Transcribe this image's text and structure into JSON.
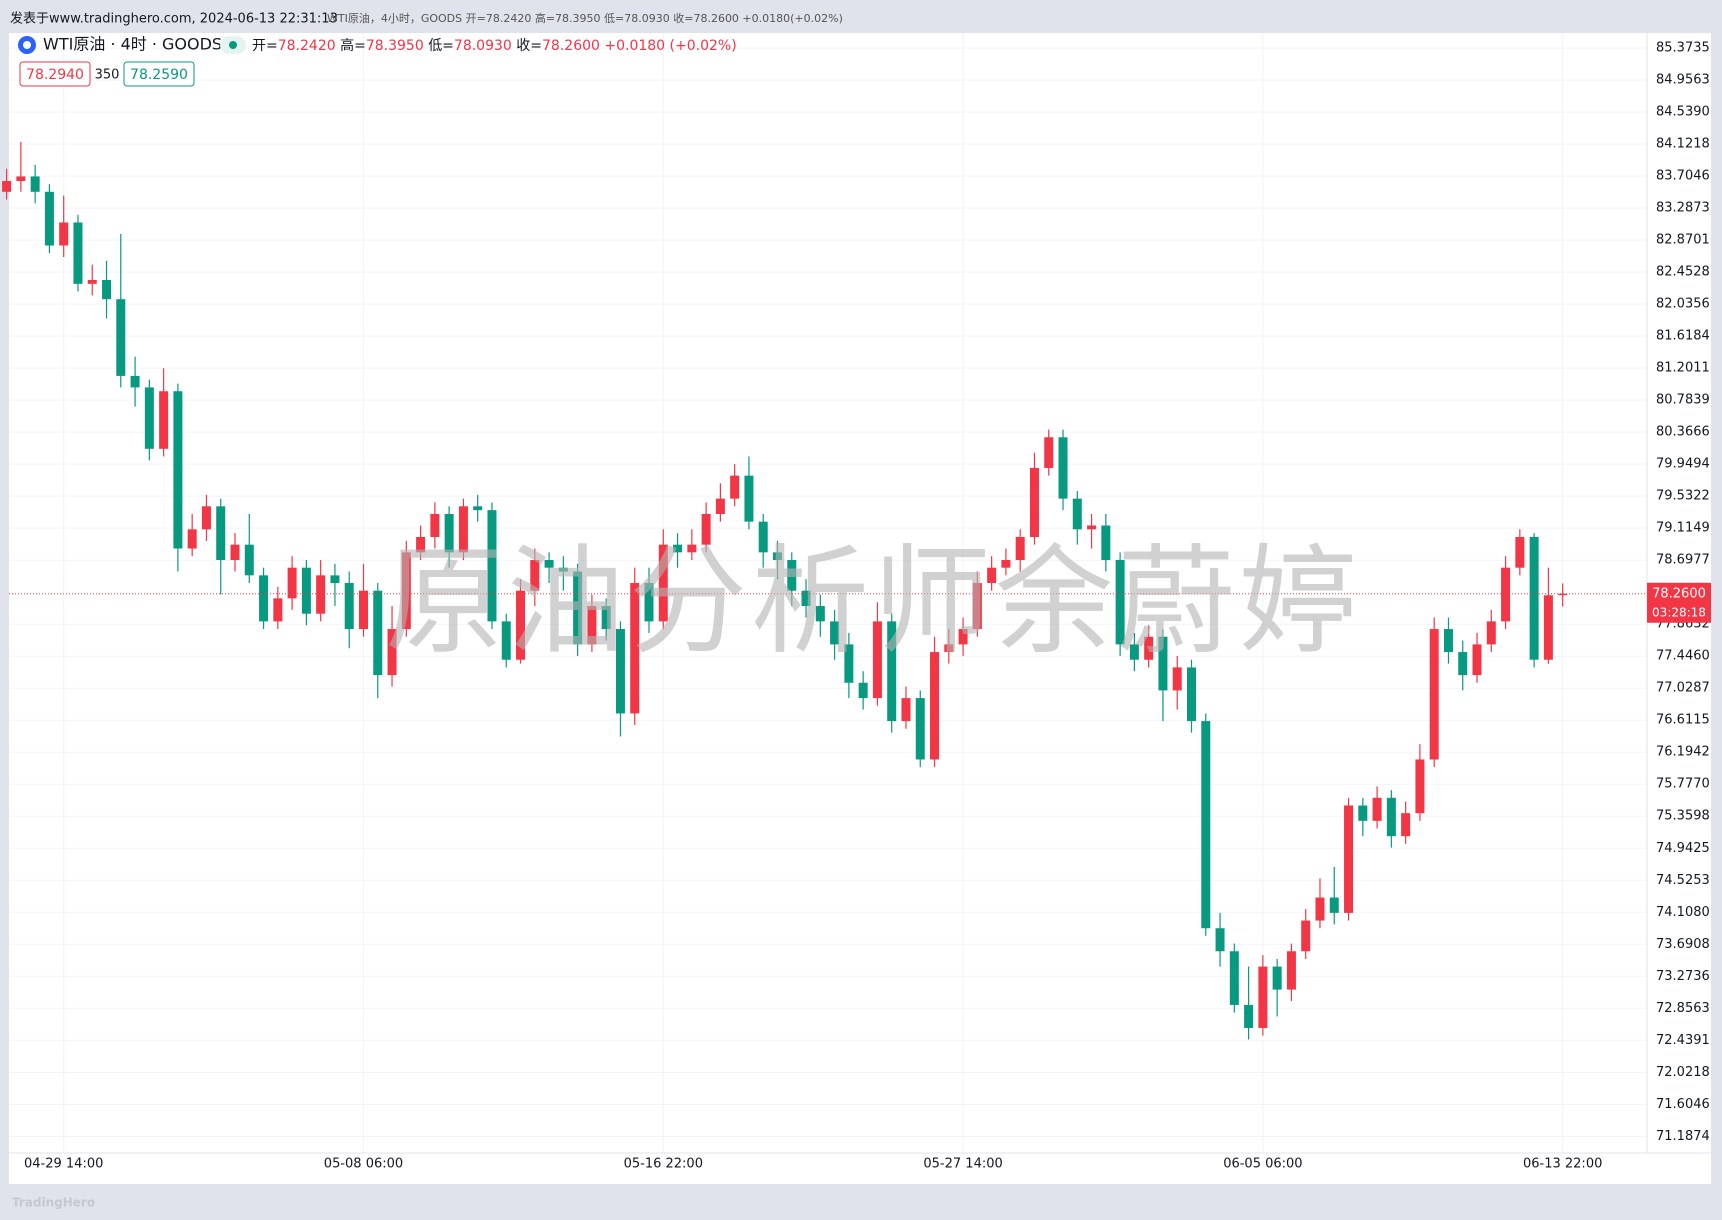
{
  "header": {
    "source": "发表于www.tradinghero.com, 2024-06-13 22:31:13",
    "summary": "WTI原油，4小时，GOODS 开=78.2420 高=78.3950 低=78.0930 收=78.2600 +0.0180(+0.02%)",
    "symbol": "WTI原油 · 4时 · GOODS",
    "ohlc": [
      {
        "label": "开=",
        "value": "78.2420"
      },
      {
        "label": "高=",
        "value": "78.3950"
      },
      {
        "label": "低=",
        "value": "78.0930"
      },
      {
        "label": "收=",
        "value": "78.2600"
      }
    ],
    "change": "+0.0180 (+0.02%)",
    "bid": "78.2940",
    "spread": "350",
    "ask": "78.2590"
  },
  "chart_data": {
    "type": "candlestick",
    "categories": [
      null,
      null,
      null,
      null,
      "04-29 14:00",
      null,
      null,
      null,
      null,
      null,
      null,
      null,
      null,
      null,
      null,
      null,
      null,
      null,
      null,
      null,
      null,
      null,
      null,
      null,
      null,
      "05-08 06:00",
      null,
      null,
      null,
      null,
      null,
      null,
      null,
      null,
      null,
      null,
      null,
      null,
      null,
      null,
      null,
      null,
      null,
      null,
      null,
      null,
      "05-16 22:00",
      null,
      null,
      null,
      null,
      null,
      null,
      null,
      null,
      null,
      null,
      null,
      null,
      null,
      null,
      null,
      null,
      null,
      null,
      null,
      null,
      "05-27 14:00",
      null,
      null,
      null,
      null,
      null,
      null,
      null,
      null,
      null,
      null,
      null,
      null,
      null,
      null,
      null,
      null,
      null,
      null,
      null,
      null,
      "06-05 06:00",
      null,
      null,
      null,
      null,
      null,
      null,
      null,
      null,
      null,
      null,
      null,
      null,
      null,
      null,
      null,
      null,
      null,
      null,
      null,
      null,
      "06-13 22:00"
    ],
    "open": [
      83.5,
      83.64,
      83.7,
      83.5,
      82.8,
      83.1,
      82.3,
      82.35,
      82.1,
      81.1,
      80.95,
      80.15,
      80.9,
      78.85,
      79.1,
      79.4,
      78.7,
      78.9,
      78.5,
      77.9,
      78.2,
      78.6,
      78.0,
      78.5,
      78.4,
      77.8,
      78.3,
      77.2,
      77.8,
      78.8,
      79.0,
      79.3,
      78.8,
      79.4,
      79.35,
      77.9,
      77.4,
      78.3,
      78.7,
      78.6,
      78.55,
      77.6,
      78.1,
      77.8,
      76.7,
      78.4,
      77.9,
      78.9,
      78.8,
      78.9,
      79.3,
      79.5,
      79.8,
      79.2,
      78.8,
      78.7,
      78.3,
      78.1,
      77.9,
      77.6,
      77.1,
      76.9,
      77.9,
      76.6,
      76.9,
      76.1,
      77.5,
      77.6,
      77.8,
      78.4,
      78.6,
      78.7,
      79.0,
      79.9,
      80.3,
      79.5,
      79.1,
      79.15,
      78.7,
      77.6,
      77.4,
      77.7,
      77.0,
      77.3,
      76.6,
      73.9,
      73.6,
      72.9,
      72.6,
      73.4,
      73.1,
      73.6,
      74.0,
      74.3,
      74.1,
      75.5,
      75.3,
      75.6,
      75.1,
      75.4,
      76.1,
      77.8,
      77.5,
      77.2,
      77.6,
      77.9,
      78.6,
      79.0,
      77.4,
      78.242
    ],
    "high": [
      83.8,
      84.15,
      83.85,
      83.6,
      83.45,
      83.2,
      82.55,
      82.6,
      82.95,
      81.35,
      81.05,
      81.2,
      81.0,
      79.3,
      79.55,
      79.5,
      79.05,
      79.3,
      78.6,
      78.35,
      78.75,
      78.7,
      78.7,
      78.65,
      78.55,
      78.65,
      78.4,
      78.1,
      78.95,
      79.15,
      79.45,
      79.4,
      79.5,
      79.55,
      79.45,
      78.0,
      78.45,
      78.85,
      78.8,
      78.75,
      78.65,
      78.25,
      78.2,
      77.9,
      78.6,
      78.6,
      79.1,
      79.05,
      79.1,
      79.45,
      79.7,
      79.95,
      80.05,
      79.3,
      78.95,
      78.8,
      78.45,
      78.25,
      78.05,
      77.75,
      77.25,
      78.15,
      78.0,
      77.05,
      77.0,
      77.7,
      77.8,
      77.95,
      78.55,
      78.75,
      78.85,
      79.1,
      80.1,
      80.4,
      80.4,
      79.6,
      79.3,
      79.3,
      78.8,
      77.75,
      77.85,
      77.8,
      77.45,
      77.4,
      76.7,
      74.1,
      73.7,
      73.4,
      73.55,
      73.5,
      73.7,
      74.15,
      74.55,
      74.7,
      75.6,
      75.6,
      75.75,
      75.7,
      75.55,
      76.3,
      77.95,
      77.95,
      77.65,
      77.75,
      78.05,
      78.75,
      79.1,
      79.05,
      78.6,
      78.395
    ],
    "low": [
      83.4,
      83.5,
      83.35,
      82.7,
      82.65,
      82.2,
      82.15,
      81.85,
      80.95,
      80.7,
      80.0,
      80.05,
      78.55,
      78.75,
      78.95,
      78.25,
      78.55,
      78.4,
      77.8,
      77.8,
      78.05,
      77.85,
      77.9,
      78.1,
      77.55,
      77.7,
      76.9,
      77.05,
      77.7,
      78.7,
      78.85,
      78.6,
      78.7,
      79.2,
      77.8,
      77.3,
      77.35,
      78.1,
      78.4,
      78.3,
      77.45,
      77.5,
      77.65,
      76.4,
      76.55,
      77.75,
      77.8,
      78.6,
      78.7,
      78.8,
      79.2,
      79.4,
      79.1,
      78.6,
      78.45,
      78.1,
      77.95,
      77.7,
      77.4,
      76.9,
      76.75,
      76.8,
      76.45,
      76.5,
      76.0,
      76.0,
      77.35,
      77.45,
      77.7,
      78.3,
      78.5,
      78.55,
      78.9,
      79.8,
      79.35,
      78.9,
      78.85,
      78.55,
      77.45,
      77.25,
      77.3,
      76.6,
      76.75,
      76.45,
      73.8,
      73.4,
      72.8,
      72.45,
      72.5,
      72.75,
      72.95,
      73.5,
      73.9,
      73.95,
      74.0,
      75.1,
      75.2,
      74.95,
      75.0,
      75.3,
      76.0,
      77.35,
      77.0,
      77.1,
      77.5,
      77.8,
      78.5,
      77.3,
      77.35,
      78.093
    ],
    "close": [
      83.64,
      83.7,
      83.5,
      82.8,
      83.1,
      82.3,
      82.35,
      82.1,
      81.1,
      80.95,
      80.15,
      80.9,
      78.85,
      79.1,
      79.4,
      78.7,
      78.9,
      78.5,
      77.9,
      78.2,
      78.6,
      78.0,
      78.5,
      78.4,
      77.8,
      78.3,
      77.2,
      77.8,
      78.8,
      79.0,
      79.3,
      78.8,
      79.4,
      79.35,
      77.9,
      77.4,
      78.3,
      78.7,
      78.6,
      78.55,
      77.6,
      78.1,
      77.8,
      76.7,
      78.4,
      77.9,
      78.9,
      78.8,
      78.9,
      79.3,
      79.5,
      79.8,
      79.2,
      78.8,
      78.7,
      78.3,
      78.1,
      77.9,
      77.6,
      77.1,
      76.9,
      77.9,
      76.6,
      76.9,
      76.1,
      77.5,
      77.6,
      77.8,
      78.4,
      78.6,
      78.7,
      79.0,
      79.9,
      80.3,
      79.5,
      79.1,
      79.15,
      78.7,
      77.6,
      77.4,
      77.7,
      77.0,
      77.3,
      76.6,
      73.9,
      73.6,
      72.9,
      72.6,
      73.4,
      73.1,
      73.6,
      74.0,
      74.3,
      74.1,
      75.5,
      75.3,
      75.6,
      75.1,
      75.4,
      76.1,
      77.8,
      77.5,
      77.2,
      77.6,
      77.9,
      78.6,
      79.0,
      77.4,
      78.24,
      78.26
    ],
    "up_color": "#f23645",
    "down_color": "#089981",
    "ylim": [
      70.97,
      85.57
    ],
    "yticks": [
      85.3735,
      84.9563,
      {
        "value": 84.539,
        "label": "84.5390"
      },
      84.1218,
      83.7046,
      83.2873,
      82.8701,
      82.4528,
      82.0356,
      81.6184,
      81.2011,
      80.7839,
      80.3666,
      79.9494,
      79.5322,
      79.1149,
      78.6977,
      77.8632,
      {
        "value": 77.446,
        "label": "77.4460"
      },
      77.0287,
      76.6115,
      76.1942,
      {
        "value": 75.777,
        "label": "75.7770"
      },
      75.3598,
      74.9425,
      74.5253,
      {
        "value": 74.108,
        "label": "74.1080"
      },
      73.6908,
      73.2736,
      72.8563,
      72.4391,
      72.0218,
      71.6046,
      71.1874
    ],
    "grid": true,
    "price_line": {
      "value": 78.26,
      "label": "78.2600",
      "countdown": "03:28:18"
    }
  },
  "watermark": "原油分析师余蔚婷",
  "footer": "TradingHero"
}
